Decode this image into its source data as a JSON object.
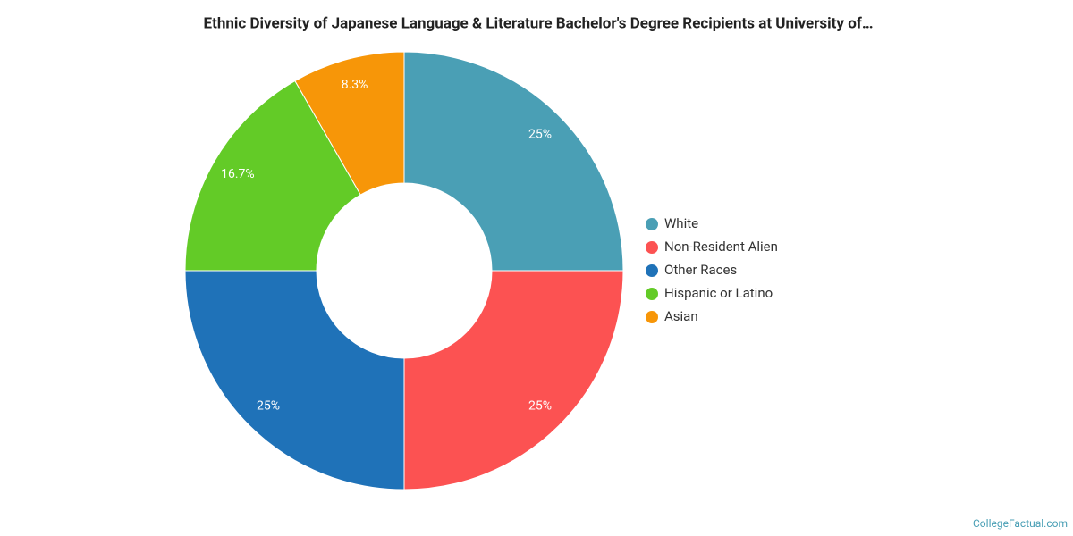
{
  "chart_data": {
    "type": "pie",
    "title": "Ethnic Diversity of Japanese Language & Literature Bachelor's Degree Recipients at University of…",
    "categories": [
      "White",
      "Non-Resident Alien",
      "Other Races",
      "Hispanic or Latino",
      "Asian"
    ],
    "values": [
      25,
      25,
      25,
      16.7,
      8.3
    ],
    "value_labels": [
      "25%",
      "25%",
      "25%",
      "16.7%",
      "8.3%"
    ],
    "colors": [
      "#4a9fb5",
      "#fc5252",
      "#1f72b8",
      "#63cb27",
      "#f79608"
    ],
    "donut": true,
    "legend": "right",
    "source": "CollegeFactual.com"
  }
}
